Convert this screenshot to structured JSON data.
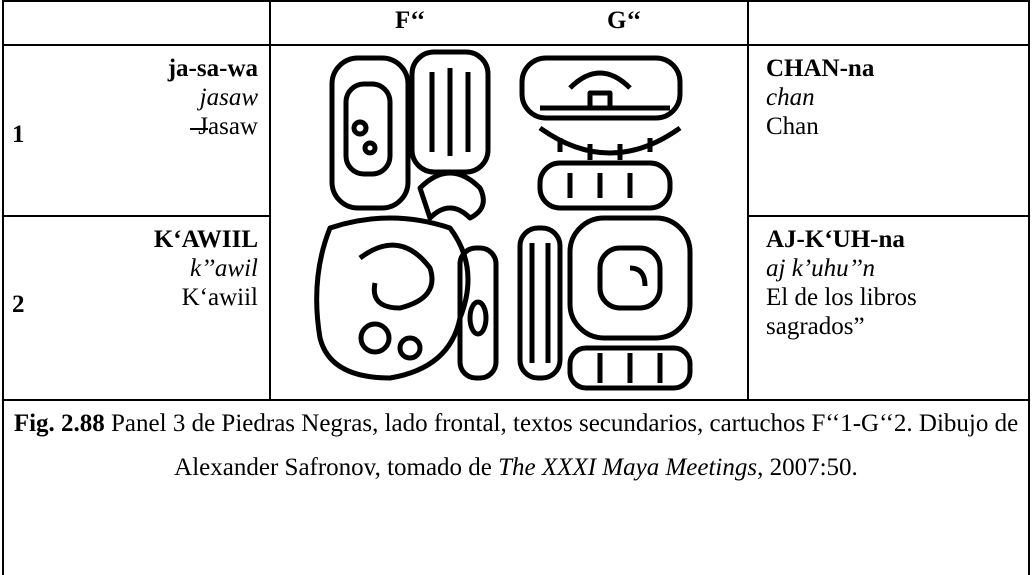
{
  "header": {
    "col_f": "F‘‘",
    "col_g": "G‘‘"
  },
  "rows": [
    {
      "number": "1",
      "left": {
        "transliteration": "ja-sa-wa",
        "transcription": "jasaw",
        "translation": "Jasaw"
      },
      "right": {
        "transliteration": "CHAN-na",
        "transcription": "chan",
        "translation": "Chan"
      }
    },
    {
      "number": "2",
      "left": {
        "transliteration": "K‘AWIIL",
        "transcription": "k’’awil",
        "translation": "K‘awiil"
      },
      "right": {
        "transliteration": "AJ-K‘UH-na",
        "transcription": "aj k’uhu’’n",
        "translation": "El de los libros sagrados”"
      }
    }
  ],
  "caption": {
    "label": "Fig. 2.88",
    "text": "Panel 3 de Piedras Negras, lado frontal, textos secundarios, cartuchos F‘‘1-G‘‘2. Dibujo de Alexander Safronov, tomado de",
    "source": "The XXXI Maya Meetings",
    "tail": ", 2007:50."
  }
}
